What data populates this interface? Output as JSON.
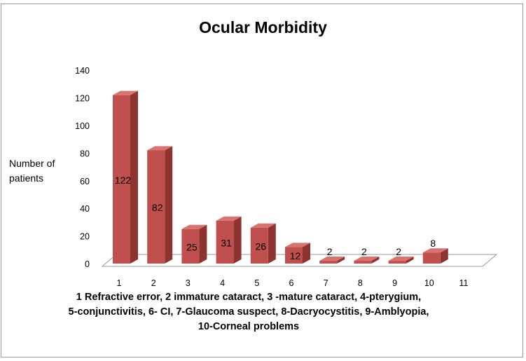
{
  "chart_data": {
    "type": "bar",
    "title": "Ocular Morbidity",
    "ylabel": "Number of patients",
    "xlabel": "",
    "categories": [
      "1",
      "2",
      "3",
      "4",
      "5",
      "6",
      "7",
      "8",
      "9",
      "10",
      "11"
    ],
    "values": [
      122,
      82,
      25,
      31,
      26,
      12,
      2,
      2,
      2,
      8,
      null
    ],
    "data_labels": [
      "122",
      "82",
      "25",
      "31",
      "26",
      "12",
      "2",
      "2",
      "2",
      "8",
      ""
    ],
    "yticks": [
      "0",
      "20",
      "40",
      "60",
      "80",
      "100",
      "120",
      "140"
    ],
    "ylim": [
      0,
      140
    ],
    "grid": false,
    "legend": "none",
    "three_d": true,
    "bar_color": "#c0504d",
    "bar_side_color": "#8f3331",
    "bar_top_color": "#d9736f",
    "caption_lines": [
      "1 Refractive error, 2  immature cataract, 3   -mature cataract, 4-pterygium,",
      "5-conjunctivitis, 6- CI, 7-Glaucoma suspect, 8-Dacryocystitis, 9-Amblyopia,",
      "10-Corneal problems"
    ]
  }
}
